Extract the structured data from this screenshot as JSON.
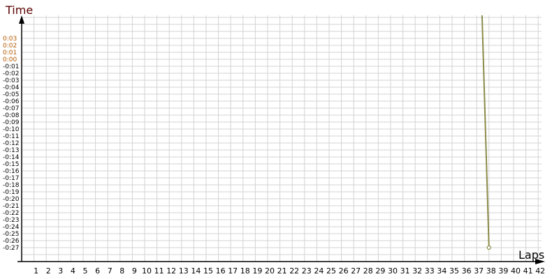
{
  "chart_data": {
    "type": "line",
    "title": "",
    "xlabel": "Laps",
    "ylabel": "Time",
    "x_ticks": [
      "1",
      "2",
      "3",
      "4",
      "5",
      "6",
      "7",
      "8",
      "9",
      "10",
      "11",
      "12",
      "13",
      "14",
      "15",
      "16",
      "17",
      "18",
      "19",
      "20",
      "21",
      "22",
      "23",
      "24",
      "25",
      "26",
      "27",
      "28",
      "29",
      "30",
      "31",
      "32",
      "33",
      "34",
      "35",
      "36",
      "37",
      "38",
      "39",
      "40",
      "41",
      "42"
    ],
    "y_ticks": [
      "0:03",
      "0:02",
      "0:01",
      "0:00",
      "-0:01",
      "-0:02",
      "-0:03",
      "-0:04",
      "-0:05",
      "-0:06",
      "-0:07",
      "-0:08",
      "-0:09",
      "-0:10",
      "-0:11",
      "-0:12",
      "-0:13",
      "-0:14",
      "-0:15",
      "-0:16",
      "-0:17",
      "-0:18",
      "-0:19",
      "-0:20",
      "-0:21",
      "-0:22",
      "-0:23",
      "-0:24",
      "-0:25",
      "-0:26",
      "-0:27"
    ],
    "ylim_seconds": [
      -29,
      6
    ],
    "xlim": [
      0,
      42
    ],
    "grid": true,
    "series": [
      {
        "x": [
          37,
          38
        ],
        "y_seconds": [
          32,
          -27
        ],
        "color": "#8b8b4a"
      }
    ],
    "colors": {
      "positive_tick": "#b35900",
      "negative_tick": "#000000",
      "ylabel": "#5a0000",
      "grid": "#d3d3d3"
    }
  }
}
